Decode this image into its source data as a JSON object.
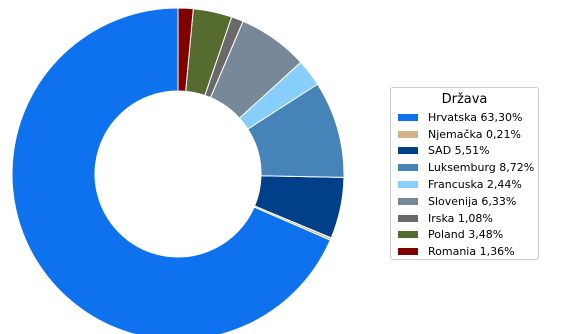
{
  "chart_data": {
    "type": "pie",
    "subtype": "donut",
    "title": "",
    "legend": {
      "title": "Država",
      "position": "right"
    },
    "slices": [
      {
        "name": "Hrvatska",
        "value": 63.3,
        "label": "Hrvatska 63,30%",
        "color": "#0e72ee"
      },
      {
        "name": "Njemačka",
        "value": 0.21,
        "label": "Njemačka 0,21%",
        "color": "#d2b48c"
      },
      {
        "name": "SAD",
        "value": 5.51,
        "label": "SAD 5,51%",
        "color": "#00408a"
      },
      {
        "name": "Luksemburg",
        "value": 8.72,
        "label": "Luksemburg 8,72%",
        "color": "#4683b8"
      },
      {
        "name": "Francuska",
        "value": 2.44,
        "label": "Francuska 2,44%",
        "color": "#87cefa"
      },
      {
        "name": "Slovenija",
        "value": 6.33,
        "label": "Slovenija 6,33%",
        "color": "#778899"
      },
      {
        "name": "Irska",
        "value": 1.08,
        "label": "Irska 1,08%",
        "color": "#696969"
      },
      {
        "name": "Poland",
        "value": 3.48,
        "label": "Poland 3,48%",
        "color": "#556b2f"
      },
      {
        "name": "Romania",
        "value": 1.36,
        "label": "Romania 1,36%",
        "color": "#800000"
      }
    ]
  }
}
